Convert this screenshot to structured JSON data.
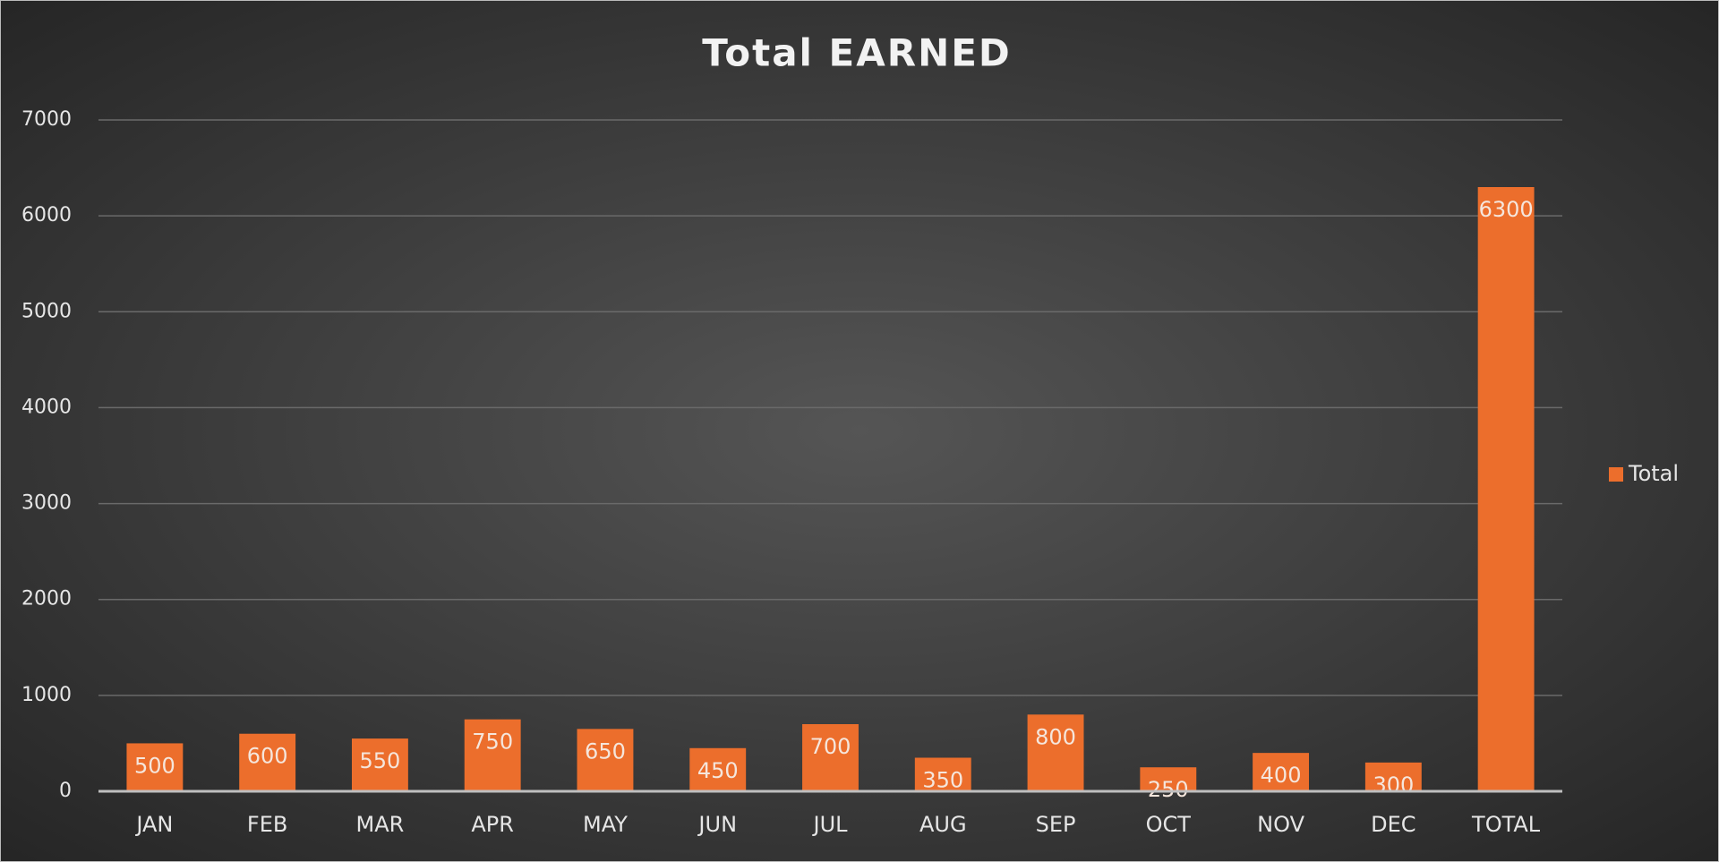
{
  "chart_data": {
    "type": "bar",
    "title": "Total EARNED",
    "categories": [
      "JAN",
      "FEB",
      "MAR",
      "APR",
      "MAY",
      "JUN",
      "JUL",
      "AUG",
      "SEP",
      "OCT",
      "NOV",
      "DEC",
      "TOTAL"
    ],
    "series": [
      {
        "name": "Total",
        "color": "#ec6e2c",
        "values": [
          500,
          600,
          550,
          750,
          650,
          450,
          700,
          350,
          800,
          250,
          400,
          300,
          6300
        ]
      }
    ],
    "ylim": [
      0,
      7000
    ],
    "yticks": [
      0,
      1000,
      2000,
      3000,
      4000,
      5000,
      6000,
      7000
    ],
    "grid": true,
    "legend": "right"
  }
}
